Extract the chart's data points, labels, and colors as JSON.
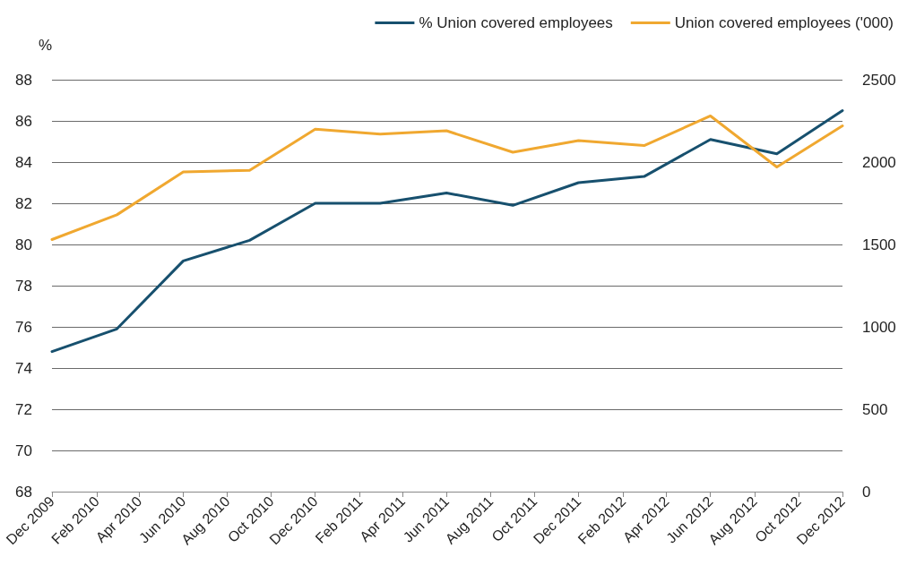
{
  "chart_data": {
    "type": "line",
    "ylabel": "%",
    "x": [
      "2009-12",
      "2010-03",
      "2010-06",
      "2010-09",
      "2010-12",
      "2011-03",
      "2011-06",
      "2011-09",
      "2011-12",
      "2012-03",
      "2012-06",
      "2012-09",
      "2012-12"
    ],
    "series": [
      {
        "name": "% Union covered employees",
        "color": "#17506e",
        "values": [
          74.8,
          75.9,
          79.2,
          80.2,
          82.0,
          82.0,
          82.5,
          81.9,
          83.0,
          83.3,
          85.1,
          84.4,
          86.5
        ]
      },
      {
        "name": "Union covered employees ('000)",
        "color": "#f0a830",
        "axis": "y2",
        "values": [
          1530,
          1680,
          1940,
          1950,
          2200,
          2170,
          2190,
          2060,
          2130,
          2100,
          2280,
          1970,
          2220
        ]
      }
    ],
    "xlim": [
      "2009-12",
      "2012-12"
    ],
    "xticks": [
      {
        "value": "2009-12",
        "label": "Dec 2009"
      },
      {
        "value": "2010-02",
        "label": "Feb 2010"
      },
      {
        "value": "2010-04",
        "label": "Apr 2010"
      },
      {
        "value": "2010-06",
        "label": "Jun 2010"
      },
      {
        "value": "2010-08",
        "label": "Aug 2010"
      },
      {
        "value": "2010-10",
        "label": "Oct 2010"
      },
      {
        "value": "2010-12",
        "label": "Dec 2010"
      },
      {
        "value": "2011-02",
        "label": "Feb 2011"
      },
      {
        "value": "2011-04",
        "label": "Apr 2011"
      },
      {
        "value": "2011-06",
        "label": "Jun 2011"
      },
      {
        "value": "2011-08",
        "label": "Aug 2011"
      },
      {
        "value": "2011-10",
        "label": "Oct 2011"
      },
      {
        "value": "2011-12",
        "label": "Dec 2011"
      },
      {
        "value": "2012-02",
        "label": "Feb 2012"
      },
      {
        "value": "2012-04",
        "label": "Apr 2012"
      },
      {
        "value": "2012-06",
        "label": "Jun 2012"
      },
      {
        "value": "2012-08",
        "label": "Aug 2012"
      },
      {
        "value": "2012-10",
        "label": "Oct 2012"
      },
      {
        "value": "2012-12",
        "label": "Dec 2012"
      }
    ],
    "ylim": [
      68,
      88
    ],
    "yticks": [
      68,
      70,
      72,
      74,
      76,
      78,
      80,
      82,
      84,
      86,
      88
    ],
    "y2lim": [
      0,
      2500
    ],
    "y2ticks": [
      0,
      500,
      1000,
      1500,
      2000,
      2500
    ],
    "grid": "y",
    "legend": "top right",
    "marker": "none",
    "line_style": "solid"
  }
}
